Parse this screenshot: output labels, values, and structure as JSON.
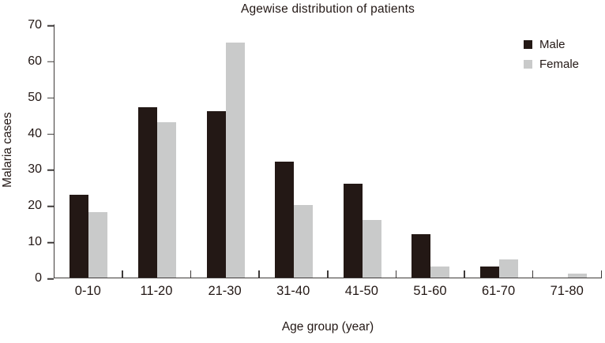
{
  "title": "Agewise distribution of patients",
  "colors": {
    "male": "#231815",
    "female": "#c9caca",
    "axis": "#3e3a39",
    "text": "#231815",
    "background": "#ffffff"
  },
  "legend": {
    "male_label": "Male",
    "female_label": "Female"
  },
  "chart_data": {
    "type": "bar",
    "title": "Agewise distribution of patients",
    "xlabel": "Age group (year)",
    "ylabel": "Malaria cases",
    "categories": [
      "0-10",
      "11-20",
      "21-30",
      "31-40",
      "41-50",
      "51-60",
      "61-70",
      "71-80"
    ],
    "series": [
      {
        "name": "Male",
        "color": "#231815",
        "values": [
          23,
          47,
          46,
          32,
          26,
          12,
          3,
          0
        ]
      },
      {
        "name": "Female",
        "color": "#c9caca",
        "values": [
          18,
          43,
          65,
          20,
          16,
          3,
          5,
          1
        ]
      }
    ],
    "ylim": [
      0,
      70
    ],
    "yticks": [
      0,
      10,
      20,
      30,
      40,
      50,
      60,
      70
    ],
    "grid": false,
    "legend_position": "top-right"
  }
}
